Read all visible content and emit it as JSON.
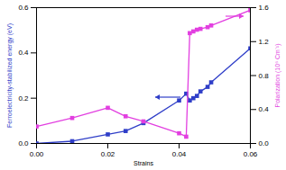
{
  "chart_data": {
    "type": "line",
    "x_label": "Strains",
    "y_label": "Ferroelectricity-stabilized energy (eV)",
    "y2_label": "Polarization (10⁶ Cm⁻¹)",
    "x": [
      0,
      0.01,
      0.02,
      0.025,
      0.03,
      0.04,
      0.042,
      0.043,
      0.044,
      0.045,
      0.046,
      0.048,
      0.049,
      0.06
    ],
    "series": [
      {
        "name": "Ferroelectricity-stabilized energy",
        "color": "#2f3ec8",
        "marker": "square",
        "axis": "y",
        "values": [
          0,
          0.01,
          0.04,
          0.055,
          0.09,
          0.19,
          0.22,
          0.19,
          0.2,
          0.21,
          0.23,
          0.25,
          0.27,
          0.42
        ]
      },
      {
        "name": "Polarization",
        "color": "#e23fe0",
        "marker": "square",
        "axis": "y2",
        "values": [
          0.2,
          0.3,
          0.42,
          0.32,
          0.26,
          0.12,
          0.08,
          1.3,
          1.32,
          1.34,
          1.35,
          1.37,
          1.39,
          1.57
        ]
      }
    ],
    "xlim": [
      0,
      0.06
    ],
    "xticks": [
      {
        "value": 0,
        "label": "0.00"
      },
      {
        "value": 0.02,
        "label": "0.02"
      },
      {
        "value": 0.04,
        "label": "0.04"
      },
      {
        "value": 0.06,
        "label": "0.06"
      }
    ],
    "ylim": [
      0,
      0.6
    ],
    "yticks": [
      {
        "value": 0,
        "label": "0.0"
      },
      0.2,
      0.4,
      0.6
    ],
    "y2lim": [
      0,
      1.6
    ],
    "y2ticks": [
      {
        "value": 0,
        "label": "0.0"
      },
      0.4,
      0.8,
      1.2,
      1.6
    ],
    "grid": false
  }
}
